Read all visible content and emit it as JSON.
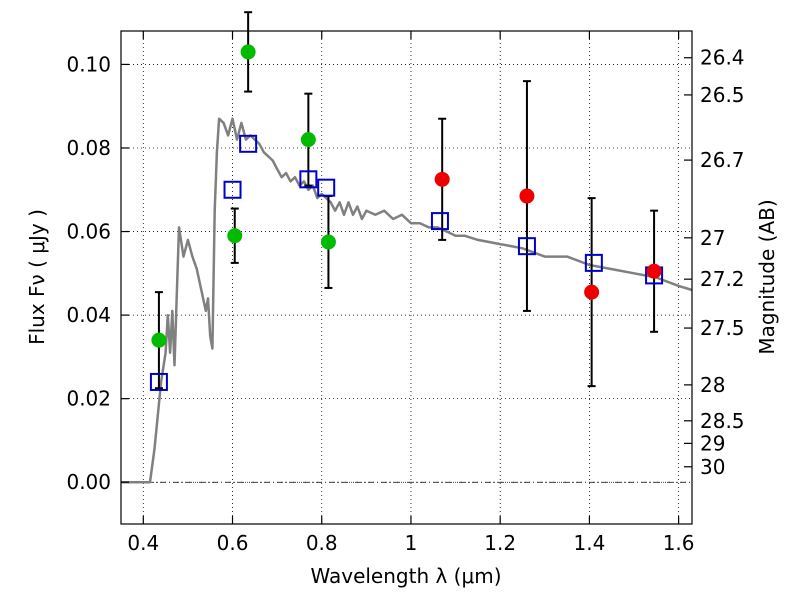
{
  "chart_data": {
    "type": "scatter",
    "title": "",
    "xlabel": "Wavelength  λ (μm)",
    "ylabel": "Flux  Fν  ( μJy )",
    "y2label": "Magnitude (AB)",
    "xlim": [
      0.35,
      1.63
    ],
    "ylim": [
      -0.01,
      0.108
    ],
    "grid": true,
    "x_ticks": [
      0.4,
      0.6,
      0.8,
      1.0,
      1.2,
      1.4,
      1.6
    ],
    "x_tick_labels": [
      "0.4",
      "0.6",
      "0.8",
      "1",
      "1.2",
      "1.4",
      "1.6"
    ],
    "y_ticks": [
      0.0,
      0.02,
      0.04,
      0.06,
      0.08,
      0.1
    ],
    "y_tick_labels": [
      "0.00",
      "0.02",
      "0.04",
      "0.06",
      "0.08",
      "0.10"
    ],
    "y2_ticks": [
      {
        "label": "26.4",
        "flux": 0.1016
      },
      {
        "label": "26.5",
        "flux": 0.0927
      },
      {
        "label": "26.7",
        "flux": 0.0771
      },
      {
        "label": "27",
        "flux": 0.0585
      },
      {
        "label": "27.2",
        "flux": 0.0486
      },
      {
        "label": "27.5",
        "flux": 0.0369
      },
      {
        "label": "28",
        "flux": 0.0233
      },
      {
        "label": "28.5",
        "flux": 0.0147
      },
      {
        "label": "29",
        "flux": 0.0093
      },
      {
        "label": "30",
        "flux": 0.0037
      }
    ],
    "series": [
      {
        "kind": "line",
        "color": "#808080",
        "x": [
          0.35,
          0.4,
          0.415,
          0.425,
          0.44,
          0.45,
          0.455,
          0.46,
          0.465,
          0.47,
          0.475,
          0.48,
          0.49,
          0.5,
          0.51,
          0.52,
          0.53,
          0.54,
          0.545,
          0.55,
          0.555,
          0.56,
          0.565,
          0.57,
          0.58,
          0.59,
          0.6,
          0.61,
          0.62,
          0.63,
          0.64,
          0.65,
          0.66,
          0.67,
          0.68,
          0.69,
          0.7,
          0.71,
          0.72,
          0.73,
          0.74,
          0.75,
          0.76,
          0.77,
          0.78,
          0.79,
          0.8,
          0.81,
          0.82,
          0.83,
          0.84,
          0.85,
          0.86,
          0.87,
          0.88,
          0.89,
          0.9,
          0.92,
          0.94,
          0.96,
          0.98,
          1.0,
          1.02,
          1.04,
          1.06,
          1.08,
          1.1,
          1.12,
          1.15,
          1.2,
          1.25,
          1.3,
          1.35,
          1.4,
          1.45,
          1.5,
          1.55,
          1.6,
          1.63
        ],
        "y": [
          0.0,
          0.0,
          0.0,
          0.008,
          0.024,
          0.031,
          0.04,
          0.031,
          0.041,
          0.028,
          0.045,
          0.061,
          0.054,
          0.058,
          0.054,
          0.051,
          0.046,
          0.041,
          0.044,
          0.035,
          0.032,
          0.065,
          0.079,
          0.087,
          0.086,
          0.083,
          0.087,
          0.082,
          0.086,
          0.082,
          0.083,
          0.082,
          0.081,
          0.079,
          0.078,
          0.077,
          0.075,
          0.073,
          0.074,
          0.072,
          0.073,
          0.071,
          0.072,
          0.07,
          0.071,
          0.068,
          0.069,
          0.068,
          0.067,
          0.065,
          0.067,
          0.064,
          0.067,
          0.064,
          0.066,
          0.063,
          0.065,
          0.064,
          0.065,
          0.063,
          0.064,
          0.062,
          0.062,
          0.061,
          0.061,
          0.06,
          0.059,
          0.059,
          0.058,
          0.057,
          0.056,
          0.054,
          0.054,
          0.052,
          0.051,
          0.05,
          0.049,
          0.047,
          0.046
        ]
      },
      {
        "kind": "open-square",
        "color": "#0000cc",
        "x": [
          0.435,
          0.6,
          0.635,
          0.77,
          0.81,
          1.065,
          1.26,
          1.41,
          1.545
        ],
        "y": [
          0.024,
          0.07,
          0.081,
          0.0725,
          0.0705,
          0.0625,
          0.0565,
          0.0525,
          0.0495
        ]
      },
      {
        "kind": "filled-circle",
        "color": "#00bb00",
        "x": [
          0.435,
          0.605,
          0.635,
          0.77,
          0.815
        ],
        "y": [
          0.034,
          0.059,
          0.103,
          0.082,
          0.0575
        ],
        "yerr": [
          0.0115,
          0.0065,
          0.0095,
          0.011,
          0.011
        ]
      },
      {
        "kind": "filled-circle",
        "color": "#ee0000",
        "x": [
          1.07,
          1.26,
          1.405,
          1.545
        ],
        "y": [
          0.0725,
          0.0685,
          0.0455,
          0.0505
        ],
        "yerr": [
          0.0145,
          0.0275,
          0.0225,
          0.0145
        ]
      }
    ]
  }
}
